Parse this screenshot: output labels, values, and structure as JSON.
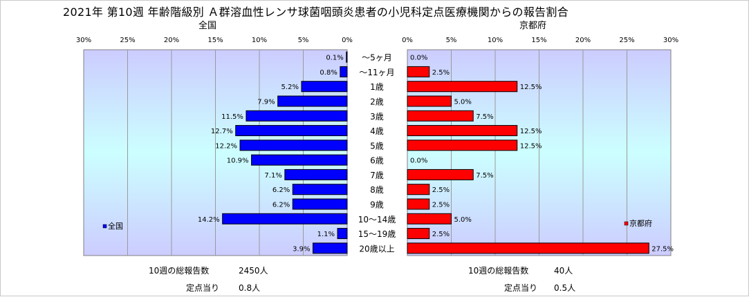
{
  "title": "2021年 第10週 年齢階級別 Ａ群溶血性レンサ球菌咽頭炎患者の小児科定点医療機関からの報告割合",
  "colors": {
    "national_bar": "#0000ff",
    "kyoto_bar": "#ff0000",
    "plot_gradient_top": "#ccccff",
    "plot_gradient_mid": "#ccffff",
    "axis_text": "#000000"
  },
  "chart_data": [
    {
      "type": "bar",
      "orientation": "horizontal",
      "direction": "right-to-left",
      "title": "全国",
      "series": [
        {
          "name": "全国",
          "values": [
            0.1,
            0.8,
            5.2,
            7.9,
            11.5,
            12.7,
            12.2,
            10.9,
            7.1,
            6.2,
            6.2,
            14.2,
            1.1,
            3.9
          ]
        }
      ],
      "value_labels": [
        "0.1%",
        "0.8%",
        "5.2%",
        "7.9%",
        "11.5%",
        "12.7%",
        "12.2%",
        "10.9%",
        "7.1%",
        "6.2%",
        "6.2%",
        "14.2%",
        "1.1%",
        "3.9%"
      ],
      "xlim": [
        0,
        30
      ],
      "xticks": [
        "30%",
        "25%",
        "20%",
        "15%",
        "10%",
        "5%",
        "0%"
      ],
      "legend": "bottom-left",
      "grid": true
    },
    {
      "type": "bar",
      "orientation": "horizontal",
      "direction": "left-to-right",
      "title": "京都府",
      "series": [
        {
          "name": "京都府",
          "values": [
            0.0,
            2.5,
            12.5,
            5.0,
            7.5,
            12.5,
            12.5,
            0.0,
            7.5,
            2.5,
            2.5,
            5.0,
            2.5,
            27.5
          ]
        }
      ],
      "value_labels": [
        "0.0%",
        "2.5%",
        "12.5%",
        "5.0%",
        "7.5%",
        "12.5%",
        "12.5%",
        "0.0%",
        "7.5%",
        "2.5%",
        "2.5%",
        "5.0%",
        "2.5%",
        "27.5%"
      ],
      "xlim": [
        0,
        30
      ],
      "xticks": [
        "0%",
        "5%",
        "10%",
        "15%",
        "20%",
        "25%",
        "30%"
      ],
      "legend": "bottom-right",
      "grid": true
    }
  ],
  "categories": [
    "～5ヶ月",
    "～11ヶ月",
    "1歳",
    "2歳",
    "3歳",
    "4歳",
    "5歳",
    "6歳",
    "7歳",
    "8歳",
    "9歳",
    "10～14歳",
    "15～19歳",
    "20歳以上"
  ],
  "footer": {
    "national_total_label": "10週の総報告数",
    "national_total_value": "2450人",
    "national_per_label": "定点当り",
    "national_per_value": "0.8人",
    "kyoto_total_label": "10週の総報告数",
    "kyoto_total_value": "40人",
    "kyoto_per_label": "定点当り",
    "kyoto_per_value": "0.5人"
  }
}
